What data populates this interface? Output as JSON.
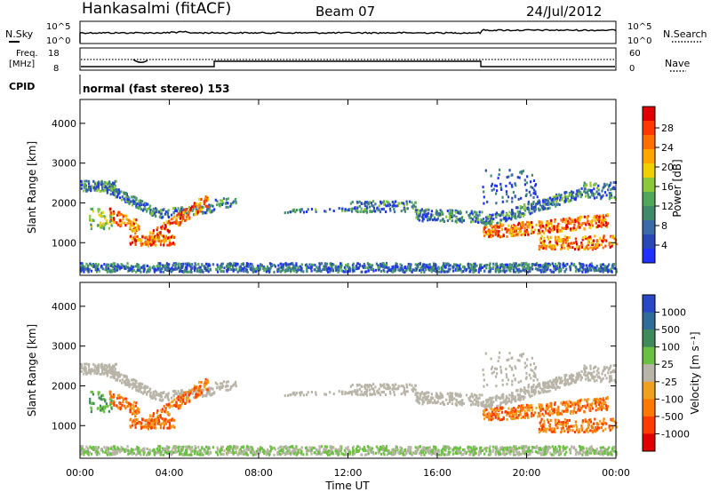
{
  "header": {
    "station": "Hankasalmi (fitACF)",
    "beam": "Beam 07",
    "date": "24/Jul/2012"
  },
  "status_panels": {
    "nsky_label": "N.Sky",
    "nsearch_label": "N.Search",
    "noise_ticks": [
      "10^5",
      "10^0"
    ],
    "freq_label_1": "Freq.",
    "freq_label_2": "[MHz]",
    "freq_ticks": [
      "18",
      "8"
    ],
    "nave_label": "Nave",
    "nave_ticks": [
      "60",
      "0"
    ],
    "cpid_label": "CPID",
    "cpid_text": "normal (fast stereo) 153"
  },
  "chart_data": [
    {
      "type": "heatmap",
      "name": "power",
      "ylabel": "Slant Range [km]",
      "xlabel": "",
      "xlim": [
        0,
        24
      ],
      "ylim": [
        180,
        4600
      ],
      "yticks": [
        "4000",
        "3000",
        "2000",
        "1000"
      ],
      "colorbar_label": "Power [dB]",
      "colorbar_ticks": [
        "28",
        "24",
        "20",
        "16",
        "12",
        "8",
        "4"
      ],
      "colors": [
        "#2030ff",
        "#2848b8",
        "#3a6aa8",
        "#3f8a6a",
        "#52a85a",
        "#8cc83a",
        "#f0d000",
        "#ffa500",
        "#ff7000",
        "#ff3800",
        "#e00000"
      ]
    },
    {
      "type": "heatmap",
      "name": "velocity",
      "ylabel": "Slant Range [km]",
      "xlabel": "Time UT",
      "xlim": [
        0,
        24
      ],
      "ylim": [
        180,
        4600
      ],
      "yticks": [
        "4000",
        "3000",
        "2000",
        "1000"
      ],
      "xticks": [
        "00:00",
        "04:00",
        "08:00",
        "12:00",
        "16:00",
        "20:00",
        "00:00"
      ],
      "colorbar_label": "Velocity [m s⁻¹]",
      "colorbar_ticks": [
        "1000",
        "500",
        "100",
        "25",
        "-25",
        "-100",
        "-500",
        "-1000"
      ],
      "colors": [
        "#2848c8",
        "#2e6c9a",
        "#3f8a5a",
        "#6ac040",
        "#b8b4a8",
        "#f0a020",
        "#ff7800",
        "#ff3c00",
        "#e00000"
      ]
    }
  ]
}
